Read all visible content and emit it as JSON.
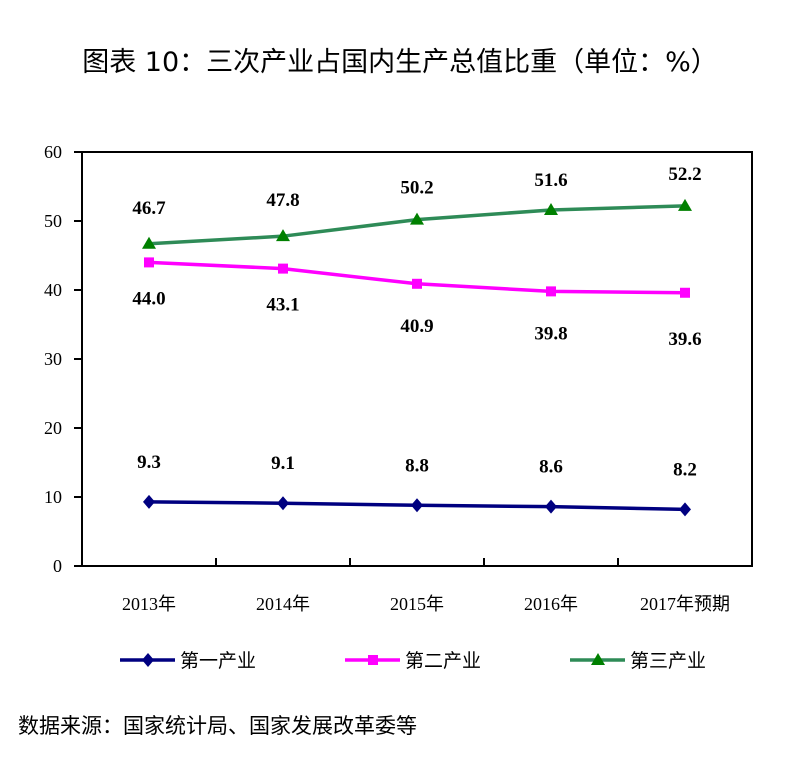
{
  "title": "图表 10：三次产业占国内生产总值比重（单位：%）",
  "source": "数据来源：国家统计局、国家发展改革委等",
  "chart_data": {
    "type": "line",
    "title": "图表 10：三次产业占国内生产总值比重（单位：%）",
    "categories": [
      "2013年",
      "2014年",
      "2015年",
      "2016年",
      "2017年预期"
    ],
    "ylim": [
      0,
      60
    ],
    "yticks": [
      0,
      10,
      20,
      30,
      40,
      50,
      60
    ],
    "grid": false,
    "legend": "bottom",
    "series": [
      {
        "name": "第一产业",
        "values": [
          9.3,
          9.1,
          8.8,
          8.6,
          8.2
        ],
        "color": "#000080",
        "marker": "diamond",
        "labels": [
          "9.3",
          "9.1",
          "8.8",
          "8.6",
          "8.2"
        ]
      },
      {
        "name": "第二产业",
        "values": [
          44.0,
          43.1,
          40.9,
          39.8,
          39.6
        ],
        "color": "#FF00FF",
        "marker": "square",
        "labels": [
          "44.0",
          "43.1",
          "40.9",
          "39.8",
          "39.6"
        ]
      },
      {
        "name": "第三产业",
        "values": [
          46.7,
          47.8,
          50.2,
          51.6,
          52.2
        ],
        "color": "#2E8B57",
        "markerColor": "#008000",
        "marker": "triangle",
        "labels": [
          "46.7",
          "47.8",
          "50.2",
          "51.6",
          "52.2"
        ]
      }
    ]
  }
}
